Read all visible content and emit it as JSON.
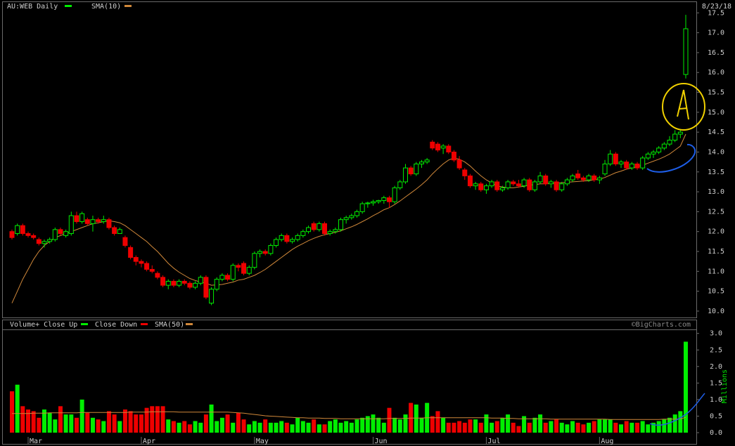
{
  "chart_data": [
    {
      "type": "candlestick",
      "title": "AU:WEB Daily",
      "date": "8/23/18",
      "up_color": "#00ee00",
      "down_color": "#ee0000",
      "candles": [
        [
          12.0,
          12.05,
          11.8,
          11.85
        ],
        [
          11.95,
          12.2,
          11.9,
          12.15
        ],
        [
          12.15,
          12.2,
          11.9,
          11.95
        ],
        [
          11.95,
          12.0,
          11.85,
          11.9
        ],
        [
          11.9,
          11.95,
          11.8,
          11.85
        ],
        [
          11.8,
          11.85,
          11.65,
          11.7
        ],
        [
          11.7,
          11.8,
          11.6,
          11.75
        ],
        [
          11.75,
          11.85,
          11.7,
          11.8
        ],
        [
          11.8,
          12.1,
          11.75,
          12.05
        ],
        [
          12.05,
          12.1,
          11.9,
          11.95
        ],
        [
          11.9,
          12.05,
          11.85,
          12.0
        ],
        [
          11.95,
          12.5,
          11.9,
          12.4
        ],
        [
          12.4,
          12.5,
          12.2,
          12.25
        ],
        [
          12.25,
          12.5,
          12.2,
          12.45
        ],
        [
          12.3,
          12.35,
          12.15,
          12.2
        ],
        [
          12.2,
          12.4,
          12.0,
          12.3
        ],
        [
          12.3,
          12.35,
          12.2,
          12.25
        ],
        [
          12.25,
          12.4,
          12.2,
          12.3
        ],
        [
          12.3,
          12.35,
          12.05,
          12.1
        ],
        [
          12.1,
          12.15,
          11.9,
          11.95
        ],
        [
          11.95,
          12.1,
          11.95,
          12.05
        ],
        [
          11.85,
          11.9,
          11.6,
          11.65
        ],
        [
          11.6,
          11.65,
          11.3,
          11.35
        ],
        [
          11.35,
          11.4,
          11.15,
          11.25
        ],
        [
          11.25,
          11.3,
          11.1,
          11.2
        ],
        [
          11.2,
          11.25,
          11.0,
          11.05
        ],
        [
          11.05,
          11.15,
          10.95,
          11.0
        ],
        [
          10.95,
          11.0,
          10.8,
          10.85
        ],
        [
          10.85,
          10.9,
          10.6,
          10.65
        ],
        [
          10.65,
          10.8,
          10.55,
          10.75
        ],
        [
          10.75,
          10.8,
          10.6,
          10.65
        ],
        [
          10.65,
          10.8,
          10.6,
          10.75
        ],
        [
          10.75,
          10.8,
          10.65,
          10.7
        ],
        [
          10.7,
          10.75,
          10.55,
          10.6
        ],
        [
          10.6,
          10.75,
          10.55,
          10.7
        ],
        [
          10.7,
          10.9,
          10.65,
          10.85
        ],
        [
          10.85,
          10.9,
          10.3,
          10.35
        ],
        [
          10.2,
          10.6,
          10.15,
          10.55
        ],
        [
          10.55,
          10.85,
          10.5,
          10.8
        ],
        [
          10.8,
          10.95,
          10.75,
          10.9
        ],
        [
          10.9,
          10.95,
          10.75,
          10.8
        ],
        [
          10.8,
          11.2,
          10.75,
          11.15
        ],
        [
          11.15,
          11.2,
          11.0,
          11.1
        ],
        [
          11.2,
          11.25,
          10.9,
          10.95
        ],
        [
          10.95,
          11.15,
          10.9,
          11.1
        ],
        [
          11.1,
          11.5,
          11.05,
          11.45
        ],
        [
          11.45,
          11.55,
          11.35,
          11.5
        ],
        [
          11.5,
          11.55,
          11.4,
          11.45
        ],
        [
          11.45,
          11.7,
          11.4,
          11.65
        ],
        [
          11.65,
          11.85,
          11.6,
          11.8
        ],
        [
          11.8,
          11.95,
          11.75,
          11.9
        ],
        [
          11.9,
          11.95,
          11.7,
          11.75
        ],
        [
          11.75,
          11.85,
          11.7,
          11.8
        ],
        [
          11.8,
          11.95,
          11.75,
          11.9
        ],
        [
          11.9,
          12.05,
          11.85,
          12.0
        ],
        [
          12.0,
          12.15,
          11.95,
          12.1
        ],
        [
          12.2,
          12.25,
          12.0,
          12.05
        ],
        [
          12.05,
          12.25,
          12.0,
          12.2
        ],
        [
          12.2,
          12.25,
          11.9,
          11.95
        ],
        [
          11.95,
          12.05,
          11.9,
          12.0
        ],
        [
          12.0,
          12.1,
          11.95,
          12.05
        ],
        [
          12.05,
          12.35,
          12.0,
          12.3
        ],
        [
          12.3,
          12.4,
          12.2,
          12.35
        ],
        [
          12.35,
          12.45,
          12.3,
          12.4
        ],
        [
          12.4,
          12.55,
          12.35,
          12.5
        ],
        [
          12.5,
          12.75,
          12.45,
          12.7
        ],
        [
          12.7,
          12.75,
          12.6,
          12.72
        ],
        [
          12.72,
          12.8,
          12.65,
          12.75
        ],
        [
          12.75,
          12.8,
          12.7,
          12.78
        ],
        [
          12.78,
          12.9,
          12.7,
          12.85
        ],
        [
          12.85,
          12.9,
          12.6,
          12.75
        ],
        [
          12.75,
          13.15,
          12.7,
          13.1
        ],
        [
          13.1,
          13.3,
          13.05,
          13.25
        ],
        [
          13.25,
          13.7,
          13.2,
          13.6
        ],
        [
          13.6,
          13.65,
          13.4,
          13.45
        ],
        [
          13.45,
          13.75,
          13.4,
          13.7
        ],
        [
          13.7,
          13.8,
          13.6,
          13.75
        ],
        [
          13.75,
          13.85,
          13.7,
          13.8
        ],
        [
          14.25,
          14.3,
          14.05,
          14.1
        ],
        [
          14.2,
          14.25,
          14.0,
          14.05
        ],
        [
          14.1,
          14.2,
          13.95,
          14.15
        ],
        [
          14.15,
          14.2,
          13.95,
          14.0
        ],
        [
          14.0,
          14.05,
          13.75,
          13.8
        ],
        [
          13.8,
          13.9,
          13.55,
          13.6
        ],
        [
          13.55,
          13.6,
          13.3,
          13.4
        ],
        [
          13.4,
          13.45,
          13.1,
          13.15
        ],
        [
          13.15,
          13.25,
          13.05,
          13.2
        ],
        [
          13.2,
          13.25,
          13.0,
          13.05
        ],
        [
          13.05,
          13.2,
          12.95,
          13.15
        ],
        [
          13.15,
          13.3,
          13.1,
          13.25
        ],
        [
          13.25,
          13.3,
          13.0,
          13.05
        ],
        [
          13.05,
          13.15,
          13.0,
          13.1
        ],
        [
          13.1,
          13.3,
          13.05,
          13.25
        ],
        [
          13.25,
          13.3,
          13.15,
          13.2
        ],
        [
          13.2,
          13.3,
          13.1,
          13.15
        ],
        [
          13.15,
          13.35,
          13.1,
          13.3
        ],
        [
          13.3,
          13.35,
          13.0,
          13.05
        ],
        [
          13.05,
          13.3,
          13.0,
          13.25
        ],
        [
          13.25,
          13.5,
          13.2,
          13.4
        ],
        [
          13.4,
          13.45,
          13.15,
          13.2
        ],
        [
          13.2,
          13.3,
          13.1,
          13.25
        ],
        [
          13.25,
          13.3,
          13.0,
          13.05
        ],
        [
          13.05,
          13.25,
          13.0,
          13.2
        ],
        [
          13.2,
          13.35,
          13.15,
          13.3
        ],
        [
          13.3,
          13.45,
          13.25,
          13.4
        ],
        [
          13.45,
          13.55,
          13.3,
          13.35
        ],
        [
          13.35,
          13.4,
          13.25,
          13.3
        ],
        [
          13.3,
          13.45,
          13.25,
          13.4
        ],
        [
          13.4,
          13.45,
          13.25,
          13.3
        ],
        [
          13.3,
          13.4,
          13.2,
          13.35
        ],
        [
          13.45,
          13.8,
          13.4,
          13.7
        ],
        [
          13.7,
          14.05,
          13.65,
          13.95
        ],
        [
          13.95,
          14.0,
          13.65,
          13.7
        ],
        [
          13.7,
          13.8,
          13.6,
          13.75
        ],
        [
          13.75,
          13.8,
          13.55,
          13.6
        ],
        [
          13.6,
          13.75,
          13.55,
          13.7
        ],
        [
          13.7,
          13.75,
          13.55,
          13.6
        ],
        [
          13.6,
          13.9,
          13.55,
          13.85
        ],
        [
          13.85,
          14.0,
          13.8,
          13.95
        ],
        [
          13.95,
          14.05,
          13.85,
          14.0
        ],
        [
          14.0,
          14.15,
          13.95,
          14.1
        ],
        [
          14.1,
          14.25,
          14.05,
          14.2
        ],
        [
          14.2,
          14.4,
          14.15,
          14.3
        ],
        [
          14.3,
          14.55,
          14.25,
          14.45
        ],
        [
          14.45,
          14.55,
          14.35,
          14.5
        ],
        [
          15.95,
          17.45,
          15.85,
          17.1
        ]
      ],
      "sma": {
        "name": "SMA(10)",
        "color": "#d0883a",
        "values": [
          10.2,
          10.5,
          10.8,
          11.05,
          11.3,
          11.5,
          11.65,
          11.75,
          11.85,
          11.9,
          11.95,
          12.0,
          12.05,
          12.1,
          12.15,
          12.2,
          12.22,
          12.25,
          12.27,
          12.25,
          12.22,
          12.15,
          12.05,
          11.95,
          11.85,
          11.75,
          11.62,
          11.5,
          11.35,
          11.2,
          11.08,
          10.98,
          10.9,
          10.82,
          10.77,
          10.73,
          10.7,
          10.65,
          10.66,
          10.67,
          10.7,
          10.73,
          10.78,
          10.8,
          10.85,
          10.9,
          10.97,
          11.05,
          11.15,
          11.25,
          11.35,
          11.45,
          11.55,
          11.63,
          11.7,
          11.77,
          11.83,
          11.88,
          11.92,
          11.95,
          11.98,
          12.02,
          12.07,
          12.12,
          12.18,
          12.25,
          12.32,
          12.4,
          12.47,
          12.55,
          12.6,
          12.68,
          12.77,
          12.87,
          12.97,
          13.07,
          13.18,
          13.3,
          13.45,
          13.58,
          13.7,
          13.8,
          13.85,
          13.82,
          13.75,
          13.65,
          13.52,
          13.4,
          13.3,
          13.22,
          13.15,
          13.12,
          13.1,
          13.1,
          13.12,
          13.14,
          13.17,
          13.18,
          13.2,
          13.2,
          13.21,
          13.22,
          13.23,
          13.24,
          13.25,
          13.26,
          13.27,
          13.28,
          13.3,
          13.32,
          13.36,
          13.42,
          13.48,
          13.52,
          13.57,
          13.6,
          13.63,
          13.67,
          13.72,
          13.77,
          13.82,
          13.88,
          13.95,
          14.05,
          14.15,
          14.45
        ]
      },
      "ylim": [
        9.84,
        17.77
      ],
      "yticks": [
        {
          "value": 10,
          "label": "10.0"
        },
        10.5,
        {
          "value": 11,
          "label": "11.0"
        },
        11.5,
        {
          "value": 12,
          "label": "12.0"
        },
        12.5,
        {
          "value": 13,
          "label": "13.0"
        },
        13.5,
        {
          "value": 14,
          "label": "14.0"
        },
        14.5,
        {
          "value": 15,
          "label": "15.0"
        },
        15.5,
        {
          "value": 16,
          "label": "16.0"
        },
        16.5,
        {
          "value": 17,
          "label": "17.0"
        },
        17.5
      ]
    },
    {
      "type": "volume",
      "series": [
        {
          "name": "Volume+ Close Up",
          "color": "#00ee00"
        },
        {
          "name": "Close Down",
          "color": "#ee0000"
        }
      ],
      "values": [
        1.25,
        1.45,
        0.8,
        0.7,
        0.65,
        0.45,
        0.7,
        0.6,
        0.4,
        0.8,
        0.55,
        0.55,
        0.45,
        1.0,
        0.6,
        0.45,
        0.4,
        0.35,
        0.65,
        0.55,
        0.35,
        0.7,
        0.65,
        0.55,
        0.55,
        0.75,
        0.8,
        0.8,
        0.8,
        0.4,
        0.35,
        0.3,
        0.35,
        0.25,
        0.35,
        0.3,
        0.55,
        0.85,
        0.35,
        0.45,
        0.55,
        0.3,
        0.6,
        0.4,
        0.25,
        0.35,
        0.3,
        0.4,
        0.3,
        0.3,
        0.35,
        0.3,
        0.25,
        0.45,
        0.35,
        0.3,
        0.4,
        0.25,
        0.25,
        0.35,
        0.4,
        0.3,
        0.35,
        0.3,
        0.4,
        0.45,
        0.5,
        0.55,
        0.45,
        0.3,
        0.75,
        0.45,
        0.4,
        0.55,
        0.9,
        0.85,
        0.45,
        0.9,
        0.5,
        0.65,
        0.45,
        0.3,
        0.3,
        0.35,
        0.3,
        0.4,
        0.4,
        0.3,
        0.55,
        0.3,
        0.35,
        0.45,
        0.55,
        0.3,
        0.2,
        0.5,
        0.3,
        0.45,
        0.55,
        0.3,
        0.35,
        0.4,
        0.3,
        0.25,
        0.35,
        0.3,
        0.25,
        0.3,
        0.35,
        0.4,
        0.4,
        0.4,
        0.3,
        0.25,
        0.35,
        0.3,
        0.3,
        0.35,
        0.25,
        0.3,
        0.35,
        0.4,
        0.45,
        0.55,
        0.65,
        2.75
      ],
      "sma": {
        "name": "SMA(50)",
        "color": "#d0883a",
        "values": [
          0.58,
          0.58,
          0.58,
          0.58,
          0.59,
          0.59,
          0.59,
          0.6,
          0.6,
          0.6,
          0.6,
          0.6,
          0.6,
          0.61,
          0.61,
          0.61,
          0.61,
          0.61,
          0.61,
          0.61,
          0.61,
          0.61,
          0.62,
          0.62,
          0.62,
          0.62,
          0.63,
          0.63,
          0.63,
          0.63,
          0.63,
          0.62,
          0.62,
          0.62,
          0.62,
          0.62,
          0.62,
          0.62,
          0.62,
          0.62,
          0.62,
          0.61,
          0.6,
          0.59,
          0.57,
          0.55,
          0.53,
          0.51,
          0.5,
          0.49,
          0.48,
          0.47,
          0.46,
          0.45,
          0.45,
          0.44,
          0.44,
          0.44,
          0.43,
          0.43,
          0.43,
          0.42,
          0.42,
          0.42,
          0.42,
          0.42,
          0.42,
          0.42,
          0.42,
          0.42,
          0.43,
          0.43,
          0.43,
          0.43,
          0.44,
          0.44,
          0.44,
          0.45,
          0.45,
          0.45,
          0.45,
          0.45,
          0.45,
          0.45,
          0.45,
          0.45,
          0.45,
          0.45,
          0.45,
          0.44,
          0.44,
          0.44,
          0.43,
          0.43,
          0.42,
          0.42,
          0.42,
          0.42,
          0.42,
          0.42,
          0.41,
          0.41,
          0.41,
          0.41,
          0.41,
          0.41,
          0.41,
          0.41,
          0.41,
          0.41,
          0.41,
          0.4,
          0.4,
          0.4,
          0.4,
          0.4,
          0.4,
          0.4,
          0.4,
          0.4,
          0.4,
          0.41,
          0.41,
          0.41,
          0.42,
          0.46
        ]
      },
      "ylabel": "Millions",
      "source": "©BigCharts.com",
      "ylim": [
        0,
        3.1
      ],
      "yticks": [
        {
          "value": 0,
          "label": "0.0"
        },
        0.5,
        {
          "value": 1,
          "label": "1.0"
        },
        1.5,
        {
          "value": 2,
          "label": "2.0"
        },
        2.5,
        {
          "value": 3,
          "label": "3.0"
        }
      ],
      "xticks": [
        {
          "value": 3,
          "label": "Mar"
        },
        {
          "value": 24,
          "label": "Apr"
        },
        {
          "value": 45,
          "label": "May"
        },
        {
          "value": 67,
          "label": "Jun"
        },
        {
          "value": 88,
          "label": "Jul"
        },
        {
          "value": 109,
          "label": "Aug"
        }
      ]
    }
  ]
}
